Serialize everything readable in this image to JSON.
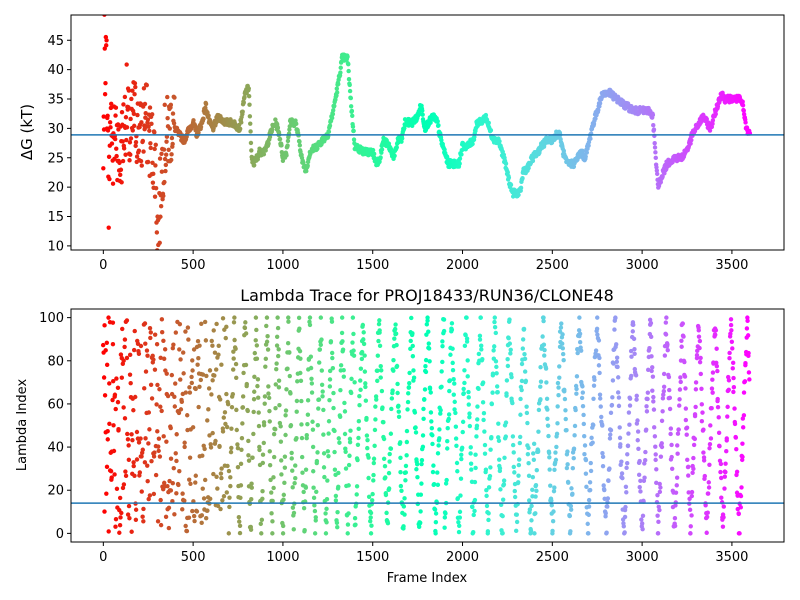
{
  "chart_data": [
    {
      "type": "scatter",
      "title": "",
      "xlabel": "",
      "ylabel": "ΔG (kT)",
      "xlim": [
        -180,
        3790
      ],
      "ylim": [
        9.3,
        49.3
      ],
      "xticks": [
        0,
        500,
        1000,
        1500,
        2000,
        2500,
        3000,
        3500
      ],
      "yticks": [
        10,
        15,
        20,
        25,
        30,
        35,
        40,
        45
      ],
      "hline": 28.9,
      "colormap": "rainbow",
      "frame_count": 3600,
      "anchors": [
        [
          0,
          21
        ],
        [
          10,
          42
        ],
        [
          20,
          36
        ],
        [
          30,
          18
        ],
        [
          40,
          33
        ],
        [
          55,
          26
        ],
        [
          70,
          31
        ],
        [
          90,
          24
        ],
        [
          110,
          29
        ],
        [
          130,
          34
        ],
        [
          150,
          27
        ],
        [
          170,
          33
        ],
        [
          190,
          30
        ],
        [
          210,
          28
        ],
        [
          230,
          33
        ],
        [
          250,
          29
        ],
        [
          270,
          27
        ],
        [
          290,
          25
        ],
        [
          300,
          14
        ],
        [
          310,
          12
        ],
        [
          320,
          22
        ],
        [
          340,
          27
        ],
        [
          360,
          29
        ],
        [
          380,
          31
        ],
        [
          400,
          30
        ],
        [
          420,
          29
        ],
        [
          450,
          28
        ],
        [
          480,
          30
        ],
        [
          500,
          31
        ],
        [
          520,
          29
        ],
        [
          550,
          31
        ],
        [
          570,
          34
        ],
        [
          590,
          31
        ],
        [
          610,
          30
        ],
        [
          640,
          32
        ],
        [
          680,
          31
        ],
        [
          720,
          31
        ],
        [
          760,
          30
        ],
        [
          790,
          36
        ],
        [
          810,
          37
        ],
        [
          825,
          25
        ],
        [
          840,
          24
        ],
        [
          870,
          26
        ],
        [
          900,
          26
        ],
        [
          920,
          28
        ],
        [
          940,
          30
        ],
        [
          960,
          31
        ],
        [
          980,
          29
        ],
        [
          1000,
          25
        ],
        [
          1020,
          26
        ],
        [
          1040,
          31
        ],
        [
          1070,
          31
        ],
        [
          1090,
          28
        ],
        [
          1110,
          24
        ],
        [
          1130,
          23
        ],
        [
          1150,
          26
        ],
        [
          1190,
          27
        ],
        [
          1220,
          28
        ],
        [
          1250,
          29
        ],
        [
          1280,
          33
        ],
        [
          1310,
          38
        ],
        [
          1330,
          42
        ],
        [
          1360,
          42
        ],
        [
          1380,
          34
        ],
        [
          1400,
          27
        ],
        [
          1450,
          26
        ],
        [
          1500,
          26
        ],
        [
          1520,
          24
        ],
        [
          1540,
          25
        ],
        [
          1560,
          28
        ],
        [
          1590,
          27
        ],
        [
          1620,
          25
        ],
        [
          1640,
          28
        ],
        [
          1660,
          28
        ],
        [
          1680,
          31
        ],
        [
          1720,
          31
        ],
        [
          1750,
          32
        ],
        [
          1770,
          34
        ],
        [
          1790,
          30
        ],
        [
          1810,
          31
        ],
        [
          1840,
          32
        ],
        [
          1860,
          31
        ],
        [
          1880,
          28
        ],
        [
          1900,
          26
        ],
        [
          1920,
          24
        ],
        [
          1950,
          24
        ],
        [
          1980,
          24
        ],
        [
          2000,
          27
        ],
        [
          2030,
          27
        ],
        [
          2060,
          28
        ],
        [
          2080,
          31
        ],
        [
          2100,
          31
        ],
        [
          2130,
          32
        ],
        [
          2160,
          29
        ],
        [
          2180,
          28
        ],
        [
          2200,
          28
        ],
        [
          2230,
          25
        ],
        [
          2260,
          21
        ],
        [
          2280,
          19
        ],
        [
          2320,
          19
        ],
        [
          2340,
          23
        ],
        [
          2360,
          23
        ],
        [
          2390,
          25
        ],
        [
          2420,
          26
        ],
        [
          2440,
          27
        ],
        [
          2470,
          28
        ],
        [
          2500,
          28
        ],
        [
          2520,
          29
        ],
        [
          2540,
          29
        ],
        [
          2560,
          26
        ],
        [
          2580,
          24
        ],
        [
          2620,
          24
        ],
        [
          2640,
          25
        ],
        [
          2660,
          26
        ],
        [
          2680,
          25
        ],
        [
          2700,
          27
        ],
        [
          2720,
          30
        ],
        [
          2740,
          32
        ],
        [
          2760,
          34
        ],
        [
          2780,
          36
        ],
        [
          2820,
          36
        ],
        [
          2860,
          35
        ],
        [
          2900,
          34
        ],
        [
          2960,
          33
        ],
        [
          3000,
          33
        ],
        [
          3040,
          33
        ],
        [
          3060,
          32
        ],
        [
          3080,
          23
        ],
        [
          3090,
          20
        ],
        [
          3110,
          22
        ],
        [
          3140,
          24
        ],
        [
          3180,
          25
        ],
        [
          3220,
          25
        ],
        [
          3240,
          26
        ],
        [
          3260,
          27
        ],
        [
          3280,
          29
        ],
        [
          3300,
          30
        ],
        [
          3320,
          31
        ],
        [
          3340,
          32
        ],
        [
          3360,
          31
        ],
        [
          3380,
          30
        ],
        [
          3400,
          32
        ],
        [
          3420,
          34
        ],
        [
          3440,
          36
        ],
        [
          3460,
          35
        ],
        [
          3500,
          35
        ],
        [
          3540,
          35
        ],
        [
          3560,
          34
        ],
        [
          3580,
          30
        ],
        [
          3600,
          29
        ]
      ]
    },
    {
      "type": "scatter",
      "title": "Lambda Trace for PROJ18433/RUN36/CLONE48",
      "xlabel": "Frame Index",
      "ylabel": "Lambda Index",
      "xlim": [
        -180,
        3790
      ],
      "ylim": [
        -4,
        104
      ],
      "xticks": [
        0,
        500,
        1000,
        1500,
        2000,
        2500,
        3000,
        3500
      ],
      "yticks": [
        0,
        20,
        40,
        60,
        80,
        100
      ],
      "hline": 14,
      "colormap": "rainbow",
      "frame_count": 3600,
      "sweep_bands": [
        {
          "start": 0,
          "end": 700,
          "lo": 0,
          "hi": 100,
          "period": 12
        },
        {
          "start": 700,
          "end": 1400,
          "lo": 0,
          "hi": 100,
          "period": 60
        },
        {
          "start": 1400,
          "end": 1900,
          "lo": 0,
          "hi": 100,
          "period": 90
        },
        {
          "start": 1900,
          "end": 2400,
          "lo": 0,
          "hi": 100,
          "period": 80
        },
        {
          "start": 2400,
          "end": 3000,
          "lo": 0,
          "hi": 100,
          "period": 100
        },
        {
          "start": 3000,
          "end": 3600,
          "lo": 0,
          "hi": 100,
          "period": 90
        }
      ]
    }
  ]
}
